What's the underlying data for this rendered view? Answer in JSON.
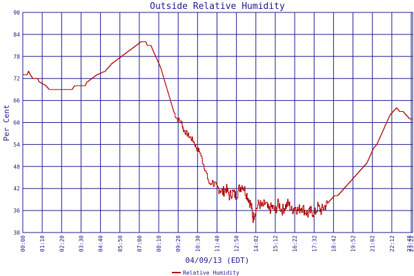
{
  "chart_data": {
    "type": "line",
    "title": "Outside Relative Humidity",
    "ylabel": "Per Cent",
    "xlabel": "04/09/13 (EDT)",
    "ylim": [
      30,
      90
    ],
    "y_ticks": [
      "30",
      "36",
      "42",
      "48",
      "54",
      "60",
      "66",
      "72",
      "78",
      "84",
      "90"
    ],
    "x_ticks": [
      "00:00",
      "01:10",
      "02:20",
      "03:30",
      "04:40",
      "05:50",
      "07:00",
      "08:10",
      "09:20",
      "10:30",
      "11:40",
      "12:50",
      "14:02",
      "15:12",
      "16:22",
      "17:32",
      "18:42",
      "19:52",
      "21:02",
      "22:12",
      "23:22",
      "23:48"
    ],
    "grid": true,
    "legend_position": "bottom-center",
    "colors": {
      "line": "#b00000",
      "grid": "#1a1a8c",
      "text": "#1a1a8c",
      "background": "#ffffff"
    },
    "series": [
      {
        "name": "Relative Humidity",
        "x_unit": "hours",
        "points": [
          [
            0.0,
            73
          ],
          [
            0.25,
            73
          ],
          [
            0.35,
            74
          ],
          [
            0.45,
            73
          ],
          [
            0.6,
            72
          ],
          [
            0.9,
            72
          ],
          [
            1.0,
            71
          ],
          [
            1.4,
            70
          ],
          [
            1.6,
            69
          ],
          [
            2.5,
            69
          ],
          [
            3.0,
            69
          ],
          [
            3.15,
            70
          ],
          [
            3.8,
            70
          ],
          [
            3.9,
            71
          ],
          [
            4.2,
            72
          ],
          [
            4.5,
            73
          ],
          [
            5.0,
            74
          ],
          [
            5.4,
            76
          ],
          [
            5.7,
            77
          ],
          [
            6.0,
            78
          ],
          [
            6.3,
            79
          ],
          [
            6.6,
            80
          ],
          [
            6.9,
            81
          ],
          [
            7.2,
            82
          ],
          [
            7.5,
            82
          ],
          [
            7.6,
            81
          ],
          [
            7.8,
            81
          ],
          [
            8.0,
            79
          ],
          [
            8.2,
            77
          ],
          [
            8.4,
            75
          ],
          [
            8.6,
            72
          ],
          [
            8.8,
            69
          ],
          [
            9.0,
            66
          ],
          [
            9.2,
            63
          ],
          [
            9.4,
            61
          ],
          [
            9.7,
            60
          ],
          [
            9.8,
            58
          ],
          [
            10.0,
            57
          ],
          [
            10.2,
            56
          ],
          [
            10.4,
            55
          ],
          [
            10.6,
            53
          ],
          [
            10.8,
            52
          ],
          [
            11.0,
            49
          ],
          [
            11.2,
            46
          ],
          [
            11.4,
            43
          ],
          [
            11.6,
            44
          ],
          [
            11.8,
            42
          ],
          [
            12.0,
            42
          ],
          [
            12.2,
            41
          ],
          [
            12.4,
            42
          ],
          [
            12.6,
            40
          ],
          [
            12.8,
            41
          ],
          [
            13.0,
            40
          ],
          [
            13.2,
            42
          ],
          [
            13.4,
            43
          ],
          [
            13.6,
            41
          ],
          [
            13.8,
            39
          ],
          [
            13.95,
            37
          ],
          [
            14.05,
            34
          ],
          [
            14.2,
            36
          ],
          [
            14.4,
            38
          ],
          [
            14.6,
            37
          ],
          [
            14.8,
            38
          ],
          [
            15.0,
            36
          ],
          [
            15.2,
            37
          ],
          [
            15.4,
            36
          ],
          [
            15.6,
            38
          ],
          [
            15.8,
            36
          ],
          [
            16.0,
            37
          ],
          [
            16.2,
            38
          ],
          [
            16.4,
            36
          ],
          [
            16.6,
            37
          ],
          [
            16.8,
            36
          ],
          [
            17.0,
            37
          ],
          [
            17.2,
            36
          ],
          [
            17.4,
            35
          ],
          [
            17.6,
            36
          ],
          [
            17.8,
            35
          ],
          [
            18.0,
            37
          ],
          [
            18.2,
            36
          ],
          [
            18.4,
            37
          ],
          [
            18.6,
            38
          ],
          [
            18.8,
            39
          ],
          [
            19.0,
            40
          ],
          [
            19.2,
            40
          ],
          [
            19.4,
            41
          ],
          [
            19.6,
            42
          ],
          [
            19.8,
            43
          ],
          [
            20.0,
            44
          ],
          [
            20.2,
            45
          ],
          [
            20.4,
            46
          ],
          [
            20.6,
            47
          ],
          [
            20.8,
            48
          ],
          [
            21.0,
            49
          ],
          [
            21.2,
            51
          ],
          [
            21.4,
            53
          ],
          [
            21.6,
            54
          ],
          [
            21.8,
            56
          ],
          [
            22.0,
            58
          ],
          [
            22.2,
            60
          ],
          [
            22.4,
            62
          ],
          [
            22.6,
            63
          ],
          [
            22.8,
            64
          ],
          [
            23.0,
            63
          ],
          [
            23.2,
            63
          ],
          [
            23.4,
            62
          ],
          [
            23.6,
            61
          ],
          [
            23.8,
            61
          ]
        ]
      }
    ]
  }
}
